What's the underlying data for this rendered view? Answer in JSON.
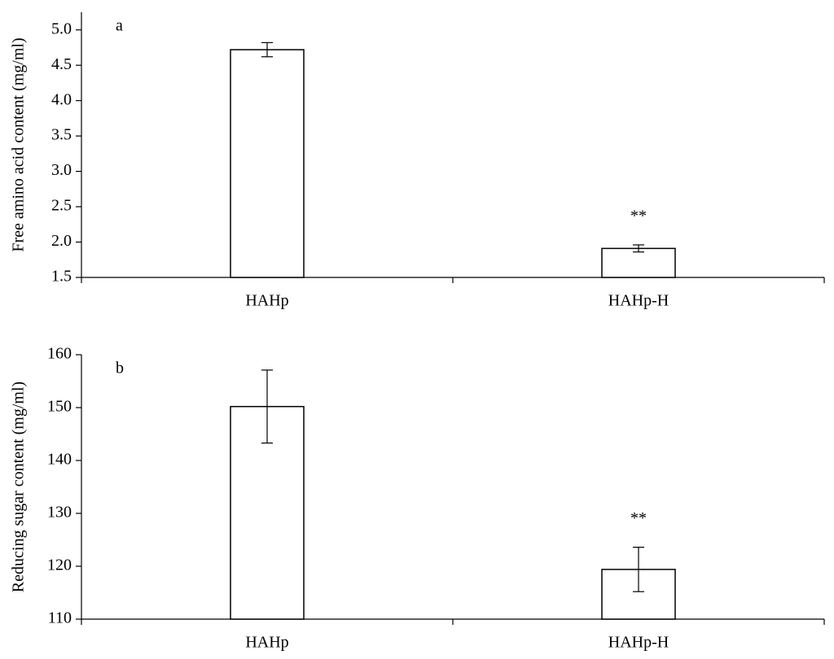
{
  "chart_data": [
    {
      "type": "bar",
      "panel_label": "a",
      "y_label": "Free amino acid content (mg/ml)",
      "categories": [
        "HAHp",
        "HAHp-H"
      ],
      "values": [
        4.72,
        1.91
      ],
      "errors": [
        0.1,
        0.05
      ],
      "color": "#ffffff",
      "annotations": [
        {
          "x": "HAHp-H",
          "text": "**"
        }
      ],
      "ylim": [
        1.5,
        5.25
      ],
      "yticks": [
        1.5,
        {
          "value": 2,
          "label": "2.0"
        },
        2.5,
        {
          "value": 3,
          "label": "3.0"
        },
        3.5,
        {
          "value": 4,
          "label": "4.0"
        },
        4.5,
        {
          "value": 5,
          "label": "5.0"
        }
      ]
    },
    {
      "type": "bar",
      "panel_label": "b",
      "y_label": "Reducing sugar content (mg/ml)",
      "categories": [
        "HAHp",
        "HAHp-H"
      ],
      "values": [
        150.2,
        119.4
      ],
      "errors": [
        6.9,
        4.2
      ],
      "color": "#ffffff",
      "annotations": [
        {
          "x": "HAHp-H",
          "text": "**"
        }
      ],
      "ylim": [
        110,
        160
      ],
      "yticks": [
        110,
        120,
        130,
        140,
        150,
        160
      ]
    }
  ]
}
